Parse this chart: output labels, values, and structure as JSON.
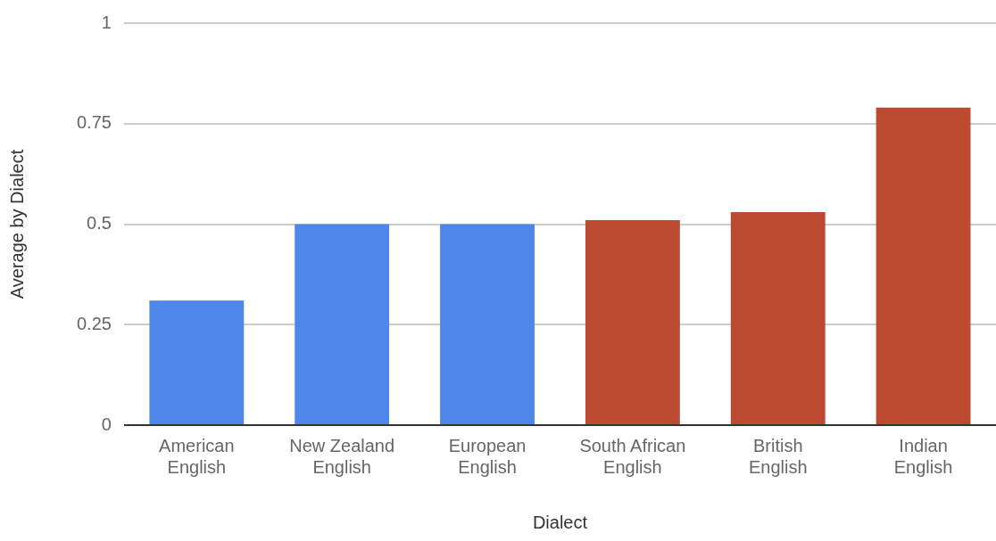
{
  "chart_data": {
    "type": "bar",
    "xlabel": "Dialect",
    "ylabel": "Average by Dialect",
    "categories": [
      "American English",
      "New Zealand English",
      "European English",
      "South African English",
      "British English",
      "Indian English"
    ],
    "values": [
      0.31,
      0.5,
      0.5,
      0.51,
      0.53,
      0.79
    ],
    "colors": [
      "#4e86ea",
      "#4e86ea",
      "#4e86ea",
      "#bb4a31",
      "#bb4a31",
      "#bb4a31"
    ],
    "ylim": [
      0,
      1
    ],
    "yticks": [
      0,
      0.25,
      0.5,
      0.75,
      1
    ],
    "grid": "y"
  }
}
